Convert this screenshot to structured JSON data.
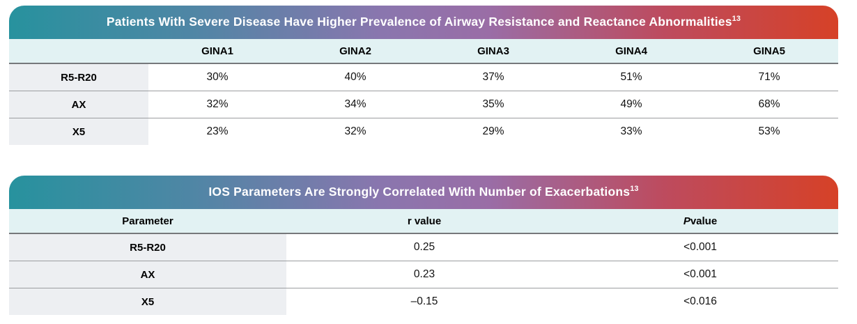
{
  "theme": {
    "gradient_left": "#27929e",
    "gradient_mid": "#9173ae",
    "gradient_right": "#d64127",
    "title_text_color": "#ffffff",
    "subheader_bg": "#e2f2f3",
    "label_column_bg": "#edeff2",
    "rule_dark": "#76787b",
    "rule_light": "#9b9da0"
  },
  "table1": {
    "title": "Patients With Severe Disease Have Higher Prevalence of Airway Resistance and Reactance Abnormalities",
    "title_sup": "13",
    "col_headers": [
      "GINA1",
      "GINA2",
      "GINA3",
      "GINA4",
      "GINA5"
    ],
    "rows": [
      {
        "label": "R5-R20",
        "values": [
          "30%",
          "40%",
          "37%",
          "51%",
          "71%"
        ]
      },
      {
        "label": "AX",
        "values": [
          "32%",
          "34%",
          "35%",
          "49%",
          "68%"
        ]
      },
      {
        "label": "X5",
        "values": [
          "23%",
          "32%",
          "29%",
          "33%",
          "53%"
        ]
      }
    ]
  },
  "table2": {
    "title": "IOS Parameters Are Strongly Correlated With Number of Exacerbations",
    "title_sup": "13",
    "param_header": "Parameter",
    "r_header": "r value",
    "p_header_italic": "P",
    "p_header_rest": " value",
    "rows": [
      {
        "label": "R5-R20",
        "r": "0.25",
        "p": "<0.001"
      },
      {
        "label": "AX",
        "r": "0.23",
        "p": "<0.001"
      },
      {
        "label": "X5",
        "r": "–0.15",
        "p": "<0.016"
      }
    ]
  },
  "chart_data": [
    {
      "type": "table",
      "title": "Patients With Severe Disease Have Higher Prevalence of Airway Resistance and Reactance Abnormalities¹³",
      "columns": [
        "",
        "GINA1",
        "GINA2",
        "GINA3",
        "GINA4",
        "GINA5"
      ],
      "rows": [
        [
          "R5-R20",
          "30%",
          "40%",
          "37%",
          "51%",
          "71%"
        ],
        [
          "AX",
          "32%",
          "34%",
          "35%",
          "49%",
          "68%"
        ],
        [
          "X5",
          "23%",
          "32%",
          "29%",
          "33%",
          "53%"
        ]
      ]
    },
    {
      "type": "table",
      "title": "IOS Parameters Are Strongly Correlated With Number of Exacerbations¹³",
      "columns": [
        "Parameter",
        "r value",
        "P value"
      ],
      "rows": [
        [
          "R5-R20",
          "0.25",
          "<0.001"
        ],
        [
          "AX",
          "0.23",
          "<0.001"
        ],
        [
          "X5",
          "–0.15",
          "<0.016"
        ]
      ]
    }
  ]
}
